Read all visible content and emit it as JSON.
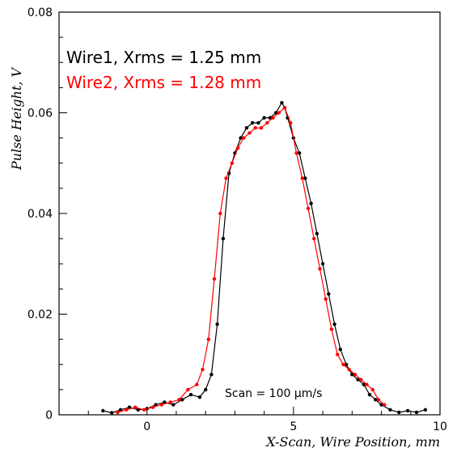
{
  "chart_data": {
    "type": "line",
    "title": "",
    "xlabel": "X-Scan, Wire Position, mm",
    "ylabel": "Pulse Height, V",
    "xlim": [
      -3,
      10
    ],
    "ylim": [
      0,
      0.08
    ],
    "x_ticks": [
      0,
      5,
      10
    ],
    "y_ticks": [
      0,
      0.02,
      0.04,
      0.06,
      0.08
    ],
    "x_tick_labels": [
      "0",
      "5",
      "10"
    ],
    "y_tick_labels": [
      "0",
      "0.02",
      "0.04",
      "0.06",
      "0.08"
    ],
    "annotation": "Scan =  100 μm/s",
    "grid": false,
    "series": [
      {
        "name": "Wire1, Xrms = 1.25 mm",
        "color": "#000000",
        "x": [
          -1.5,
          -1.2,
          -0.9,
          -0.6,
          -0.3,
          0.0,
          0.3,
          0.6,
          0.9,
          1.2,
          1.5,
          1.8,
          2.0,
          2.2,
          2.4,
          2.6,
          2.8,
          3.0,
          3.2,
          3.4,
          3.6,
          3.8,
          4.0,
          4.2,
          4.4,
          4.6,
          4.7,
          4.8,
          5.0,
          5.2,
          5.4,
          5.6,
          5.8,
          6.0,
          6.2,
          6.4,
          6.6,
          6.8,
          7.0,
          7.2,
          7.4,
          7.6,
          7.8,
          8.0,
          8.3,
          8.6,
          8.9,
          9.2,
          9.5
        ],
        "values": [
          0.0008,
          0.0004,
          0.001,
          0.0015,
          0.001,
          0.0012,
          0.002,
          0.0025,
          0.002,
          0.003,
          0.004,
          0.0035,
          0.005,
          0.008,
          0.018,
          0.035,
          0.048,
          0.052,
          0.055,
          0.057,
          0.058,
          0.058,
          0.059,
          0.059,
          0.06,
          0.062,
          0.061,
          0.059,
          0.055,
          0.052,
          0.047,
          0.042,
          0.036,
          0.03,
          0.024,
          0.018,
          0.013,
          0.01,
          0.008,
          0.007,
          0.006,
          0.004,
          0.003,
          0.002,
          0.001,
          0.0005,
          0.0008,
          0.0005,
          0.001
        ]
      },
      {
        "name": "Wire2, Xrms = 1.28 mm",
        "color": "#ff0000",
        "x": [
          -1.0,
          -0.7,
          -0.4,
          -0.1,
          0.2,
          0.5,
          0.8,
          1.1,
          1.4,
          1.7,
          1.9,
          2.1,
          2.3,
          2.5,
          2.7,
          2.9,
          3.1,
          3.3,
          3.5,
          3.7,
          3.9,
          4.1,
          4.3,
          4.5,
          4.7,
          4.9,
          5.1,
          5.3,
          5.5,
          5.7,
          5.9,
          6.1,
          6.3,
          6.5,
          6.7,
          6.9,
          7.1,
          7.3,
          7.5,
          7.7,
          7.9,
          8.1
        ],
        "values": [
          0.0005,
          0.001,
          0.0015,
          0.001,
          0.0015,
          0.002,
          0.0025,
          0.003,
          0.005,
          0.006,
          0.009,
          0.015,
          0.027,
          0.04,
          0.047,
          0.05,
          0.053,
          0.055,
          0.056,
          0.057,
          0.057,
          0.058,
          0.059,
          0.06,
          0.061,
          0.058,
          0.052,
          0.047,
          0.041,
          0.035,
          0.029,
          0.023,
          0.017,
          0.012,
          0.01,
          0.009,
          0.008,
          0.007,
          0.006,
          0.005,
          0.003,
          0.002
        ]
      }
    ]
  }
}
